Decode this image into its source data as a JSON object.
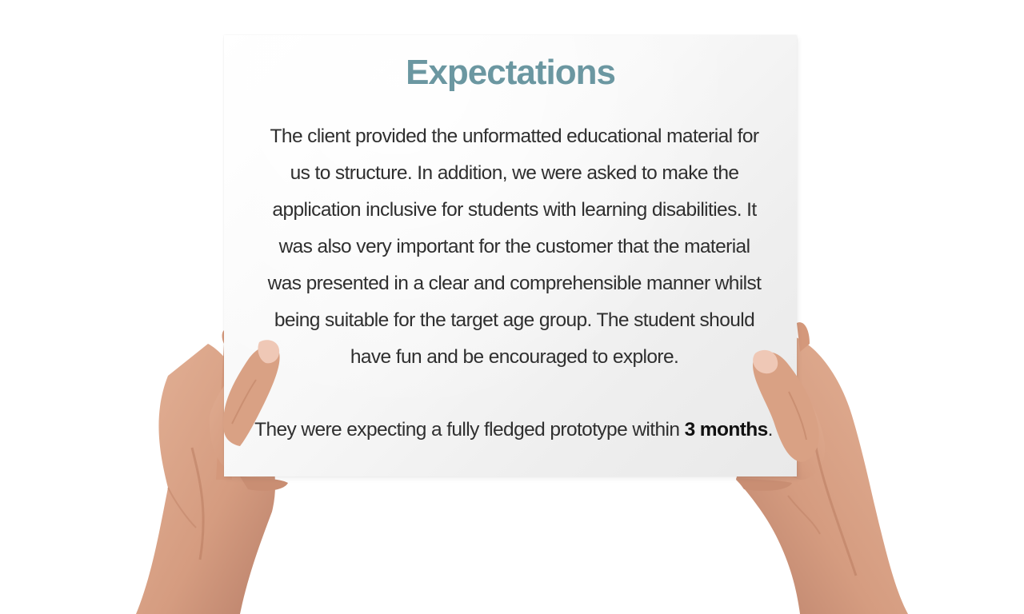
{
  "sign": {
    "title": "Expectations",
    "body": "The client provided the unformatted educational material for us to structure. In addition, we were asked to make the application inclusive for students with learning disabilities. It was also very important for the customer that the material was presented in a clear and comprehensible manner whilst being suitable for the target age group. The student should have fun and be encouraged to explore.",
    "closing_prefix": "They were expecting a fully fledged prototype within ",
    "closing_emphasis": "3 months",
    "closing_suffix": "."
  },
  "colors": {
    "title": "#6b97a1",
    "text": "#2f2f2f",
    "skin": "#d9a184",
    "skin_shadow": "#b87a5e",
    "nail": "#eec7b6"
  }
}
